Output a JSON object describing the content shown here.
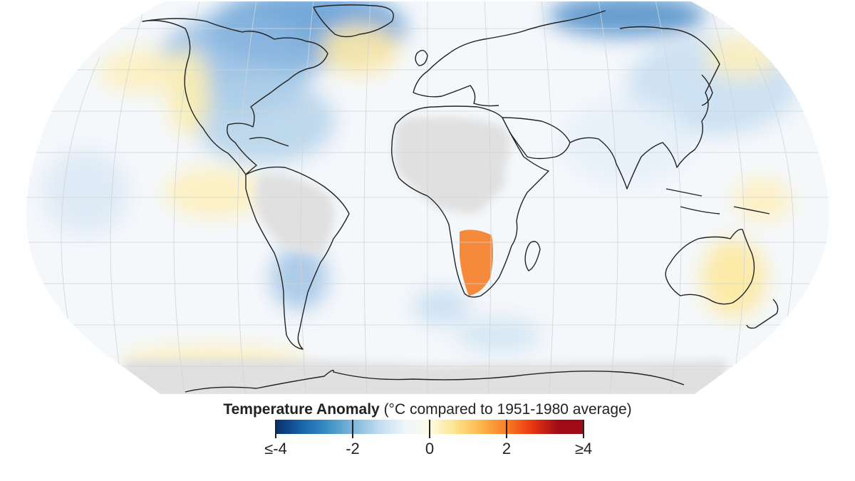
{
  "map": {
    "projection": "robinson-like",
    "colors": {
      "ocean_neutral": "#f5f8fb",
      "no_data": "#e0e0e0",
      "graticule": "#d0d0d0",
      "coastline": "#222222"
    },
    "anomaly_regions": [
      {
        "name": "Greenland / Arctic Canada",
        "anomaly_c": -1.3,
        "color": "#5d9bd4"
      },
      {
        "name": "Northeastern Siberia",
        "anomaly_c": -1.4,
        "color": "#4d8cc8"
      },
      {
        "name": "North America (east)",
        "anomaly_c": -0.8,
        "color": "#b0cfe8"
      },
      {
        "name": "North Atlantic",
        "anomaly_c": 0.5,
        "color": "#fde9a8"
      },
      {
        "name": "Western United States coast",
        "anomaly_c": 0.4,
        "color": "#fcedb0"
      },
      {
        "name": "East Asia / North Pacific",
        "anomaly_c": -0.4,
        "color": "#c9dff1"
      },
      {
        "name": "Southern Africa",
        "anomaly_c": 1.7,
        "color": "#f5893c"
      },
      {
        "name": "Eastern Australia",
        "anomaly_c": 0.5,
        "color": "#fce9a2"
      },
      {
        "name": "Argentina",
        "anomaly_c": -0.7,
        "color": "#a4c5e5"
      },
      {
        "name": "South Pacific",
        "anomaly_c": 0.3,
        "color": "#fdf0bc"
      },
      {
        "name": "Southern Ocean",
        "anomaly_c": -0.3,
        "color": "#d3e5f3"
      }
    ],
    "no_data_regions": [
      "North Africa",
      "Central Africa",
      "Amazon / South America interior",
      "Antarctica"
    ]
  },
  "legend": {
    "title_bold": "Temperature Anomaly",
    "title_rest": " (°C compared to 1951-1980 average)",
    "tick_labels": [
      "≤-4",
      "-2",
      "0",
      "2",
      "≥4"
    ],
    "tick_values": [
      -4,
      -2,
      0,
      2,
      4
    ],
    "color_stops": [
      "#08306b",
      "#1764ab",
      "#3a8fc6",
      "#7fb6dc",
      "#bfdcef",
      "#eef5fb",
      "#fdfbe6",
      "#fde28a",
      "#fdb44b",
      "#f97d24",
      "#e8350f",
      "#9e0a16"
    ]
  }
}
